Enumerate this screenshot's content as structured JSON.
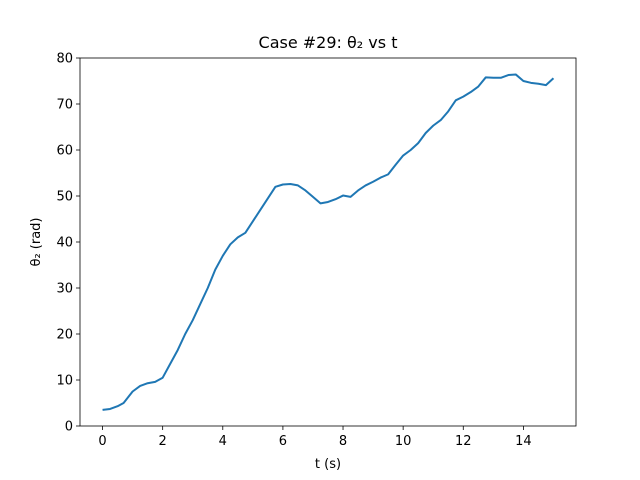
{
  "chart_data": {
    "type": "line",
    "title": "Case #29: θ₂ vs t",
    "x_label": "t (s)",
    "y_label": "θ₂ (rad)",
    "x": [
      0,
      0.25,
      0.5,
      0.7,
      1.0,
      1.25,
      1.5,
      1.75,
      2.0,
      2.25,
      2.5,
      2.75,
      3.0,
      3.25,
      3.5,
      3.75,
      4.0,
      4.25,
      4.5,
      4.75,
      5.0,
      5.25,
      5.5,
      5.75,
      6.0,
      6.25,
      6.5,
      6.75,
      7.0,
      7.25,
      7.5,
      7.75,
      8.0,
      8.25,
      8.5,
      8.75,
      9.0,
      9.25,
      9.5,
      9.75,
      10.0,
      10.25,
      10.5,
      10.75,
      11.0,
      11.25,
      11.5,
      11.75,
      12.0,
      12.25,
      12.5,
      12.75,
      13.0,
      13.25,
      13.5,
      13.75,
      14.0,
      14.25,
      14.5,
      14.75,
      15.0
    ],
    "series": [
      {
        "name": "theta2",
        "color": "#1f77b4",
        "values": [
          3.5,
          3.7,
          4.3,
          5.0,
          7.5,
          8.7,
          9.3,
          9.6,
          10.5,
          13.5,
          16.5,
          20,
          23,
          26.5,
          30,
          34,
          37,
          39.5,
          41,
          42,
          44.5,
          47,
          49.5,
          52,
          52.5,
          52.6,
          52.3,
          51.2,
          49.8,
          48.4,
          48.7,
          49.3,
          50.1,
          49.8,
          51.2,
          52.3,
          53.1,
          54,
          54.7,
          56.8,
          58.8,
          60,
          61.5,
          63.7,
          65.3,
          66.5,
          68.4,
          70.8,
          71.6,
          72.6,
          73.8,
          75.8,
          75.7,
          75.7,
          76.3,
          76.4,
          75,
          74.6,
          74.4,
          74.1,
          75.6
        ]
      }
    ],
    "xlim": [
      -0.75,
      15.75
    ],
    "ylim": [
      0,
      80
    ],
    "xticks": [
      0,
      2,
      4,
      6,
      8,
      10,
      12,
      14
    ],
    "yticks": [
      0,
      10,
      20,
      30,
      40,
      50,
      60,
      70,
      80
    ],
    "grid": false
  }
}
